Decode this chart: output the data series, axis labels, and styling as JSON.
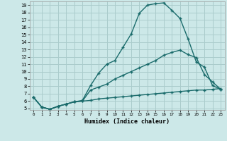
{
  "xlabel": "Humidex (Indice chaleur)",
  "xlim": [
    -0.5,
    23.5
  ],
  "ylim": [
    4.8,
    19.5
  ],
  "xticks": [
    0,
    1,
    2,
    3,
    4,
    5,
    6,
    7,
    8,
    9,
    10,
    11,
    12,
    13,
    14,
    15,
    16,
    17,
    18,
    19,
    20,
    21,
    22,
    23
  ],
  "yticks": [
    5,
    6,
    7,
    8,
    9,
    10,
    11,
    12,
    13,
    14,
    15,
    16,
    17,
    18,
    19
  ],
  "bg_color": "#cce8e8",
  "grid_color": "#aacccc",
  "line_color": "#1a6b6b",
  "line1_x": [
    0,
    1,
    2,
    3,
    4,
    5,
    6,
    7,
    8,
    9,
    10,
    11,
    12,
    13,
    14,
    15,
    16,
    17,
    18,
    19,
    20,
    21,
    22,
    23
  ],
  "line1_y": [
    6.5,
    5.2,
    4.9,
    5.3,
    5.6,
    5.9,
    6.1,
    8.1,
    9.8,
    11.0,
    11.5,
    13.3,
    15.1,
    17.9,
    19.0,
    19.2,
    19.3,
    18.3,
    17.2,
    14.4,
    11.3,
    10.6,
    8.1,
    7.6
  ],
  "line2_x": [
    0,
    1,
    2,
    3,
    4,
    5,
    6,
    7,
    8,
    9,
    10,
    11,
    12,
    13,
    14,
    15,
    16,
    17,
    18,
    19,
    20,
    21,
    22,
    23
  ],
  "line2_y": [
    6.5,
    5.2,
    4.9,
    5.3,
    5.6,
    5.9,
    6.0,
    7.5,
    7.9,
    8.3,
    9.0,
    9.5,
    10.0,
    10.5,
    11.0,
    11.5,
    12.2,
    12.6,
    12.9,
    12.3,
    11.9,
    9.6,
    8.6,
    7.6
  ],
  "line3_x": [
    0,
    1,
    2,
    3,
    4,
    5,
    6,
    7,
    8,
    9,
    10,
    11,
    12,
    13,
    14,
    15,
    16,
    17,
    18,
    19,
    20,
    21,
    22,
    23
  ],
  "line3_y": [
    6.5,
    5.2,
    4.9,
    5.3,
    5.6,
    5.9,
    6.0,
    6.1,
    6.3,
    6.4,
    6.5,
    6.6,
    6.7,
    6.8,
    6.9,
    7.0,
    7.1,
    7.2,
    7.3,
    7.4,
    7.5,
    7.5,
    7.6,
    7.7
  ]
}
